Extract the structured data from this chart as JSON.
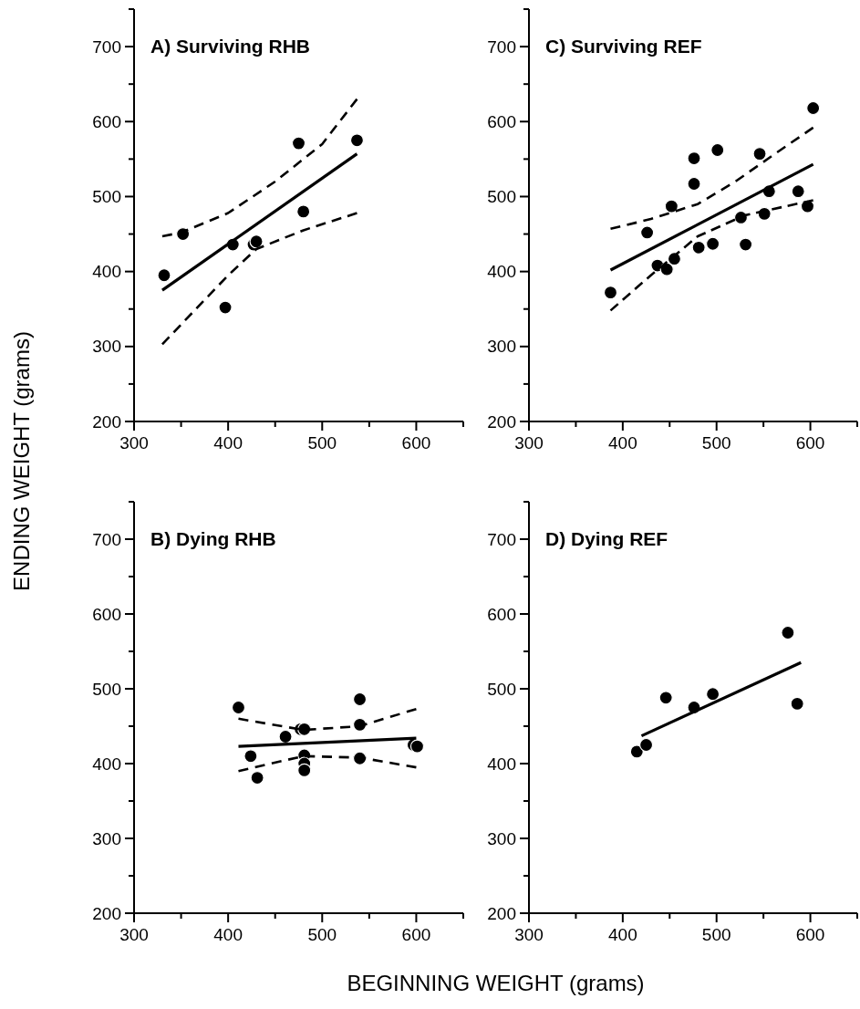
{
  "chart_data": [
    {
      "type": "scatter",
      "title": "A)  Surviving RHB",
      "ylabel": "ENDING WEIGHT (grams)",
      "xlim": [
        300,
        650
      ],
      "ylim": [
        200,
        750
      ],
      "xticks": [
        300,
        {
          "value": 350,
          "label": null
        },
        400,
        {
          "value": 450,
          "label": null
        },
        500,
        {
          "value": 550,
          "label": null
        },
        600,
        {
          "value": 650,
          "label": null
        }
      ],
      "yticks": [
        200,
        {
          "value": 250,
          "label": null
        },
        300,
        {
          "value": 350,
          "label": null
        },
        400,
        {
          "value": 450,
          "label": null
        },
        500,
        {
          "value": 550,
          "label": null
        },
        600,
        {
          "value": 650,
          "label": null
        },
        700,
        {
          "value": 750,
          "label": null
        }
      ],
      "series": [
        {
          "marker": "circle",
          "color": "#000000",
          "x": [
            332,
            352,
            397,
            405,
            427,
            430,
            475,
            480,
            537
          ],
          "values": [
            395,
            450,
            352,
            436,
            436,
            440,
            571,
            480,
            575
          ]
        },
        {
          "type": "line",
          "line_style": "solid",
          "color": "#000000",
          "x": [
            330,
            537
          ],
          "values": [
            375,
            557
          ]
        },
        {
          "type": "line",
          "line_style": "dashed",
          "color": "#000000",
          "x": [
            330,
            350,
            400,
            450,
            500,
            537
          ],
          "values": [
            447,
            452,
            478,
            520,
            570,
            630
          ]
        },
        {
          "type": "line",
          "line_style": "dashed",
          "color": "#000000",
          "x": [
            330,
            400,
            430,
            480,
            537
          ],
          "values": [
            303,
            395,
            430,
            455,
            478
          ]
        }
      ]
    },
    {
      "type": "scatter",
      "title": "C)  Surviving REF",
      "xlim": [
        300,
        650
      ],
      "ylim": [
        200,
        750
      ],
      "xticks": [
        300,
        {
          "value": 350,
          "label": null
        },
        400,
        {
          "value": 450,
          "label": null
        },
        500,
        {
          "value": 550,
          "label": null
        },
        600,
        {
          "value": 650,
          "label": null
        }
      ],
      "yticks": [
        200,
        {
          "value": 250,
          "label": null
        },
        300,
        {
          "value": 350,
          "label": null
        },
        400,
        {
          "value": 450,
          "label": null
        },
        500,
        {
          "value": 550,
          "label": null
        },
        600,
        {
          "value": 650,
          "label": null
        },
        700,
        {
          "value": 750,
          "label": null
        }
      ],
      "series": [
        {
          "marker": "circle",
          "color": "#000000",
          "x": [
            387,
            426,
            437,
            447,
            452,
            455,
            476,
            476,
            481,
            496,
            501,
            526,
            531,
            546,
            551,
            556,
            587,
            597,
            603
          ],
          "values": [
            372,
            452,
            408,
            403,
            487,
            417,
            517,
            551,
            432,
            437,
            562,
            472,
            436,
            557,
            477,
            507,
            507,
            487,
            618
          ]
        },
        {
          "type": "line",
          "line_style": "solid",
          "color": "#000000",
          "x": [
            387,
            603
          ],
          "values": [
            402,
            543
          ]
        },
        {
          "type": "line",
          "line_style": "dashed",
          "color": "#000000",
          "x": [
            387,
            430,
            480,
            520,
            560,
            603
          ],
          "values": [
            457,
            470,
            490,
            520,
            555,
            592
          ]
        },
        {
          "type": "line",
          "line_style": "dashed",
          "color": "#000000",
          "x": [
            387,
            430,
            480,
            530,
            603
          ],
          "values": [
            348,
            395,
            447,
            475,
            495
          ]
        }
      ]
    },
    {
      "type": "scatter",
      "title": "B)  Dying RHB",
      "xlabel": "BEGINNING WEIGHT (grams)",
      "xlim": [
        300,
        650
      ],
      "ylim": [
        200,
        750
      ],
      "xticks": [
        300,
        {
          "value": 350,
          "label": null
        },
        400,
        {
          "value": 450,
          "label": null
        },
        500,
        {
          "value": 550,
          "label": null
        },
        600,
        {
          "value": 650,
          "label": null
        }
      ],
      "yticks": [
        200,
        {
          "value": 250,
          "label": null
        },
        300,
        {
          "value": 350,
          "label": null
        },
        400,
        {
          "value": 450,
          "label": null
        },
        500,
        {
          "value": 550,
          "label": null
        },
        600,
        {
          "value": 650,
          "label": null
        },
        700,
        {
          "value": 750,
          "label": null
        }
      ],
      "series": [
        {
          "marker": "circle",
          "color": "#000000",
          "x": [
            411,
            424,
            431,
            461,
            477,
            481,
            481,
            481,
            481,
            540,
            540,
            540,
            597,
            601
          ],
          "values": [
            475,
            410,
            381,
            436,
            446,
            446,
            411,
            400,
            391,
            486,
            452,
            407,
            425,
            423
          ]
        },
        {
          "type": "line",
          "line_style": "solid",
          "color": "#000000",
          "x": [
            411,
            600
          ],
          "values": [
            423,
            434
          ]
        },
        {
          "type": "line",
          "line_style": "dashed",
          "color": "#000000",
          "x": [
            411,
            480,
            540,
            600
          ],
          "values": [
            460,
            445,
            450,
            473
          ]
        },
        {
          "type": "line",
          "line_style": "dashed",
          "color": "#000000",
          "x": [
            411,
            480,
            540,
            600
          ],
          "values": [
            390,
            410,
            408,
            395
          ]
        }
      ]
    },
    {
      "type": "scatter",
      "title": "D)  Dying REF",
      "xlim": [
        300,
        650
      ],
      "ylim": [
        200,
        750
      ],
      "xticks": [
        300,
        {
          "value": 350,
          "label": null
        },
        400,
        {
          "value": 450,
          "label": null
        },
        500,
        {
          "value": 550,
          "label": null
        },
        600,
        {
          "value": 650,
          "label": null
        }
      ],
      "yticks": [
        200,
        {
          "value": 250,
          "label": null
        },
        300,
        {
          "value": 350,
          "label": null
        },
        400,
        {
          "value": 450,
          "label": null
        },
        500,
        {
          "value": 550,
          "label": null
        },
        600,
        {
          "value": 650,
          "label": null
        },
        700,
        {
          "value": 750,
          "label": null
        }
      ],
      "series": [
        {
          "marker": "circle",
          "color": "#000000",
          "x": [
            415,
            425,
            446,
            476,
            496,
            576,
            586
          ],
          "values": [
            416,
            425,
            488,
            475,
            493,
            575,
            480
          ]
        },
        {
          "type": "line",
          "line_style": "solid",
          "color": "#000000",
          "x": [
            420,
            590
          ],
          "values": [
            437,
            535
          ]
        }
      ]
    }
  ]
}
